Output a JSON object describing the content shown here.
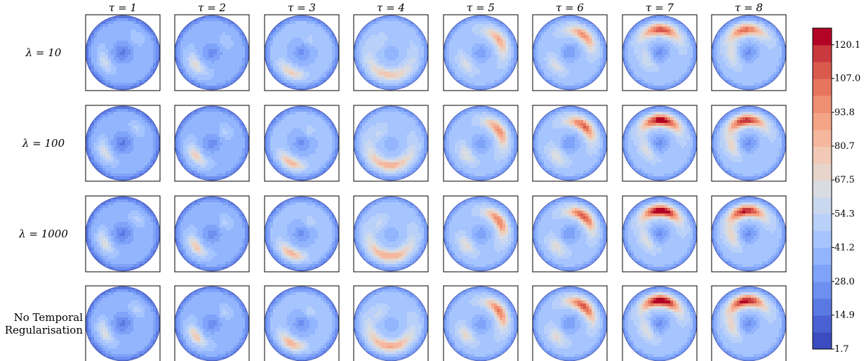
{
  "chart_data": {
    "type": "heatmap",
    "columns": [
      {
        "label": "τ = 1",
        "tau": 1
      },
      {
        "label": "τ = 2",
        "tau": 2
      },
      {
        "label": "τ = 3",
        "tau": 3
      },
      {
        "label": "τ = 4",
        "tau": 4
      },
      {
        "label": "τ = 5",
        "tau": 5
      },
      {
        "label": "τ = 6",
        "tau": 6
      },
      {
        "label": "τ = 7",
        "tau": 7
      },
      {
        "label": "τ = 8",
        "tau": 8
      }
    ],
    "rows": [
      {
        "label": "λ = 10",
        "lines": [
          "λ = 10"
        ]
      },
      {
        "label": "λ = 100",
        "lines": [
          "λ = 100"
        ]
      },
      {
        "label": "λ = 1000",
        "lines": [
          "λ = 1000"
        ]
      },
      {
        "label": "No Temporal Regularisation",
        "lines": [
          "No Temporal",
          "Regularisation"
        ]
      }
    ],
    "colorbar": {
      "range": [
        1.7,
        126.6
      ],
      "levels": 19,
      "colormap": "coolwarm",
      "ticks": [
        {
          "value": 1.7,
          "label": "1.7"
        },
        {
          "value": 14.9,
          "label": "14.9"
        },
        {
          "value": 28.0,
          "label": "28.0"
        },
        {
          "value": 41.2,
          "label": "41.2"
        },
        {
          "value": 54.3,
          "label": "54.3"
        },
        {
          "value": 67.5,
          "label": "67.5"
        },
        {
          "value": 80.7,
          "label": "80.7"
        },
        {
          "value": 93.8,
          "label": "93.8"
        },
        {
          "value": 107.0,
          "label": "107.0"
        },
        {
          "value": 120.1,
          "label": "120.1"
        }
      ],
      "colors": [
        "#3b4cc0",
        "#4961d2",
        "#5a78e1",
        "#6c8ff0",
        "#7fa3f8",
        "#93b5fe",
        "#a6c4fe",
        "#b9d0f9",
        "#cad8ef",
        "#d9dce1",
        "#e7d4cb",
        "#f1c9b5",
        "#f5b79e",
        "#f4a487",
        "#ef8f71",
        "#e6755e",
        "#d95a4d",
        "#c83a3d",
        "#b40426"
      ]
    }
  }
}
